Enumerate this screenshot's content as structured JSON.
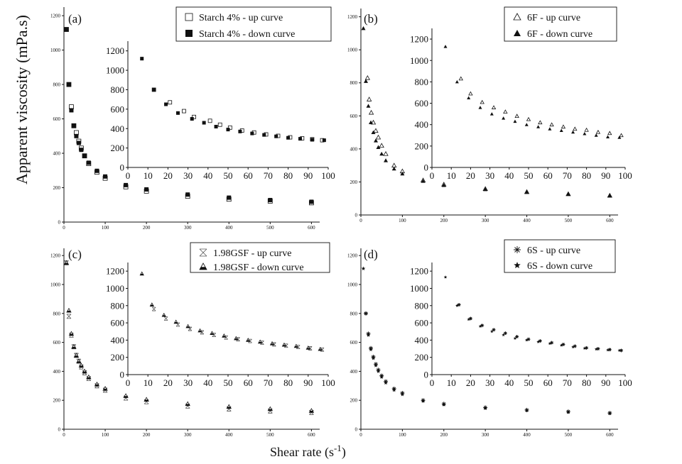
{
  "figure": {
    "ylabel": "Apparent viscosity (mPa.s)",
    "xlabel_prefix": "Shear rate (s",
    "xlabel_sup": "-1",
    "xlabel_suffix": ")"
  },
  "chart_data": [
    {
      "type": "scatter",
      "panel": "(a)",
      "xlim": [
        0,
        620
      ],
      "ylim": [
        0,
        1250
      ],
      "xticks": [
        0,
        100,
        200,
        300,
        400,
        500,
        600
      ],
      "yticks": [
        0,
        200,
        400,
        600,
        800,
        1000,
        1200
      ],
      "series": [
        {
          "name": "Starch 4% - up curve",
          "marker": "square-open",
          "x": [
            6,
            12,
            18,
            24,
            30,
            36,
            42,
            50,
            60,
            80,
            100,
            150,
            200,
            300,
            400,
            500,
            600
          ],
          "y": [
            1120,
            800,
            670,
            560,
            520,
            470,
            430,
            385,
            340,
            290,
            255,
            205,
            180,
            150,
            133,
            122,
            112
          ]
        },
        {
          "name": "Starch 4% - down curve",
          "marker": "square-filled",
          "x": [
            6,
            12,
            18,
            24,
            30,
            36,
            42,
            50,
            60,
            80,
            100,
            150,
            200,
            300,
            400,
            500,
            600
          ],
          "y": [
            1120,
            800,
            650,
            560,
            500,
            460,
            420,
            385,
            345,
            298,
            265,
            215,
            190,
            160,
            142,
            128,
            118
          ]
        }
      ],
      "inset": {
        "xlim": [
          0,
          100
        ],
        "ylim": [
          0,
          1300
        ],
        "xticks": [
          0,
          10,
          20,
          30,
          40,
          50,
          60,
          70,
          80,
          90,
          100
        ],
        "yticks": [
          0,
          200,
          400,
          600,
          800,
          1000,
          1200
        ],
        "series": [
          {
            "name": "up",
            "marker": "square-open",
            "x": [
              13,
              21,
              28,
              33,
              41,
              46,
              51,
              57,
              63,
              69,
              75,
              81,
              87,
              92,
              97
            ],
            "y": [
              800,
              670,
              580,
              520,
              480,
              440,
              410,
              380,
              360,
              340,
              325,
              310,
              300,
              290,
              280
            ]
          },
          {
            "name": "down",
            "marker": "square-filled",
            "x": [
              7,
              13,
              19,
              25,
              32,
              38,
              44,
              50,
              56,
              62,
              68,
              74,
              80,
              86,
              92,
              98
            ],
            "y": [
              1120,
              800,
              650,
              560,
              500,
              460,
              420,
              390,
              370,
              350,
              335,
              320,
              305,
              295,
              285,
              280
            ]
          }
        ]
      }
    },
    {
      "type": "scatter",
      "panel": "(b)",
      "xlim": [
        0,
        620
      ],
      "ylim": [
        0,
        1250
      ],
      "xticks": [
        0,
        100,
        200,
        300,
        400,
        500,
        600
      ],
      "yticks": [
        0,
        200,
        400,
        600,
        800,
        1000,
        1200
      ],
      "series": [
        {
          "name": "6F - up curve",
          "marker": "triangle-open",
          "x": [
            16,
            20,
            25,
            30,
            36,
            42,
            50,
            60,
            80,
            100,
            150,
            200,
            300,
            400,
            500,
            600
          ],
          "y": [
            830,
            700,
            620,
            560,
            510,
            470,
            420,
            370,
            300,
            265,
            210,
            185,
            158,
            140,
            127,
            118
          ]
        },
        {
          "name": "6F - down curve",
          "marker": "triangle-filled",
          "x": [
            6,
            12,
            18,
            24,
            30,
            36,
            42,
            50,
            60,
            80,
            100,
            150,
            200,
            300,
            400,
            500,
            600
          ],
          "y": [
            1130,
            810,
            660,
            560,
            500,
            450,
            410,
            370,
            330,
            280,
            250,
            205,
            180,
            155,
            138,
            126,
            116
          ]
        }
      ],
      "inset": {
        "xlim": [
          0,
          100
        ],
        "ylim": [
          0,
          1300
        ],
        "xticks": [
          0,
          10,
          20,
          30,
          40,
          50,
          60,
          70,
          80,
          90,
          100
        ],
        "yticks": [
          0,
          200,
          400,
          600,
          800,
          1000,
          1200
        ],
        "series": [
          {
            "name": "up",
            "marker": "triangle-open",
            "x": [
              15,
              20,
              26,
              32,
              38,
              44,
              50,
              56,
              62,
              68,
              74,
              80,
              86,
              92,
              98
            ],
            "y": [
              830,
              690,
              610,
              560,
              520,
              480,
              450,
              420,
              400,
              380,
              360,
              350,
              330,
              320,
              300
            ]
          },
          {
            "name": "down",
            "marker": "triangle-filled",
            "x": [
              7,
              13,
              19,
              25,
              31,
              37,
              43,
              49,
              55,
              61,
              67,
              73,
              79,
              85,
              91,
              97
            ],
            "y": [
              1130,
              800,
              650,
              560,
              500,
              460,
              430,
              400,
              380,
              360,
              345,
              330,
              315,
              300,
              285,
              280
            ]
          }
        ]
      }
    },
    {
      "type": "scatter",
      "panel": "(c)",
      "xlim": [
        0,
        620
      ],
      "ylim": [
        0,
        1250
      ],
      "xticks": [
        0,
        100,
        200,
        300,
        400,
        500,
        600
      ],
      "yticks": [
        0,
        200,
        400,
        600,
        800,
        1000,
        1200
      ],
      "series": [
        {
          "name": "1.98GSF - up curve",
          "marker": "crossed-x",
          "x": [
            6,
            12,
            18,
            24,
            30,
            36,
            42,
            50,
            60,
            80,
            100,
            150,
            200,
            300,
            400,
            500,
            600
          ],
          "y": [
            1150,
            780,
            650,
            570,
            510,
            470,
            430,
            390,
            350,
            300,
            270,
            215,
            190,
            160,
            140,
            126,
            116
          ]
        },
        {
          "name": "1.98GSF - down curve",
          "marker": "triangle-half",
          "x": [
            6,
            12,
            18,
            24,
            30,
            36,
            42,
            50,
            60,
            80,
            100,
            150,
            200,
            300,
            400,
            500,
            600
          ],
          "y": [
            1150,
            820,
            660,
            570,
            510,
            470,
            440,
            400,
            360,
            310,
            280,
            230,
            205,
            175,
            155,
            140,
            128
          ]
        }
      ],
      "inset": {
        "xlim": [
          0,
          100
        ],
        "ylim": [
          0,
          1300
        ],
        "xticks": [
          0,
          10,
          20,
          30,
          40,
          50,
          60,
          70,
          80,
          90,
          100
        ],
        "yticks": [
          0,
          200,
          400,
          600,
          800,
          1000,
          1200
        ],
        "series": [
          {
            "name": "up",
            "marker": "crossed-x",
            "x": [
              13,
              19,
              25,
              31,
              37,
              43,
              49,
              55,
              61,
              67,
              73,
              79,
              85,
              91,
              97
            ],
            "y": [
              760,
              650,
              580,
              530,
              490,
              460,
              430,
              410,
              390,
              370,
              350,
              335,
              320,
              305,
              290
            ]
          },
          {
            "name": "down",
            "marker": "triangle-half",
            "x": [
              7,
              12,
              18,
              24,
              30,
              36,
              42,
              48,
              54,
              60,
              66,
              72,
              78,
              84,
              90,
              96
            ],
            "y": [
              1170,
              810,
              690,
              610,
              560,
              510,
              480,
              450,
              420,
              400,
              380,
              360,
              345,
              330,
              310,
              295
            ]
          }
        ]
      }
    },
    {
      "type": "scatter",
      "panel": "(d)",
      "xlim": [
        0,
        620
      ],
      "ylim": [
        0,
        1250
      ],
      "xticks": [
        0,
        100,
        200,
        300,
        400,
        500,
        600
      ],
      "yticks": [
        0,
        200,
        400,
        600,
        800,
        1000,
        1200
      ],
      "series": [
        {
          "name": "6S - up curve",
          "marker": "asterisk",
          "x": [
            12,
            18,
            24,
            30,
            36,
            42,
            50,
            60,
            80,
            100,
            150,
            200,
            300,
            400,
            500,
            600
          ],
          "y": [
            800,
            660,
            560,
            500,
            450,
            410,
            370,
            330,
            280,
            250,
            200,
            175,
            150,
            133,
            122,
            112
          ]
        },
        {
          "name": "6S - down curve",
          "marker": "star",
          "x": [
            6,
            12,
            18,
            24,
            30,
            36,
            42,
            50,
            60,
            80,
            100,
            150,
            200,
            300,
            400,
            500,
            600
          ],
          "y": [
            1110,
            800,
            650,
            550,
            490,
            440,
            400,
            360,
            320,
            270,
            240,
            195,
            170,
            145,
            130,
            118,
            110
          ]
        }
      ],
      "inset": {
        "xlim": [
          0,
          100
        ],
        "ylim": [
          0,
          1300
        ],
        "xticks": [
          0,
          10,
          20,
          30,
          40,
          50,
          60,
          70,
          80,
          90,
          100
        ],
        "yticks": [
          0,
          200,
          400,
          600,
          800,
          1000,
          1200
        ],
        "series": [
          {
            "name": "up",
            "marker": "asterisk",
            "x": [
              14,
              20,
              26,
              32,
              38,
              44,
              50,
              56,
              62,
              68,
              74,
              80,
              86,
              92,
              98
            ],
            "y": [
              810,
              650,
              570,
              520,
              480,
              440,
              410,
              390,
              370,
              350,
              330,
              310,
              300,
              290,
              280
            ]
          },
          {
            "name": "down",
            "marker": "star",
            "x": [
              7,
              13,
              19,
              25,
              31,
              37,
              43,
              49,
              55,
              61,
              67,
              73,
              79,
              85,
              91,
              97
            ],
            "y": [
              1130,
              800,
              640,
              560,
              500,
              460,
              420,
              400,
              380,
              360,
              340,
              320,
              305,
              295,
              285,
              280
            ]
          }
        ]
      }
    }
  ]
}
